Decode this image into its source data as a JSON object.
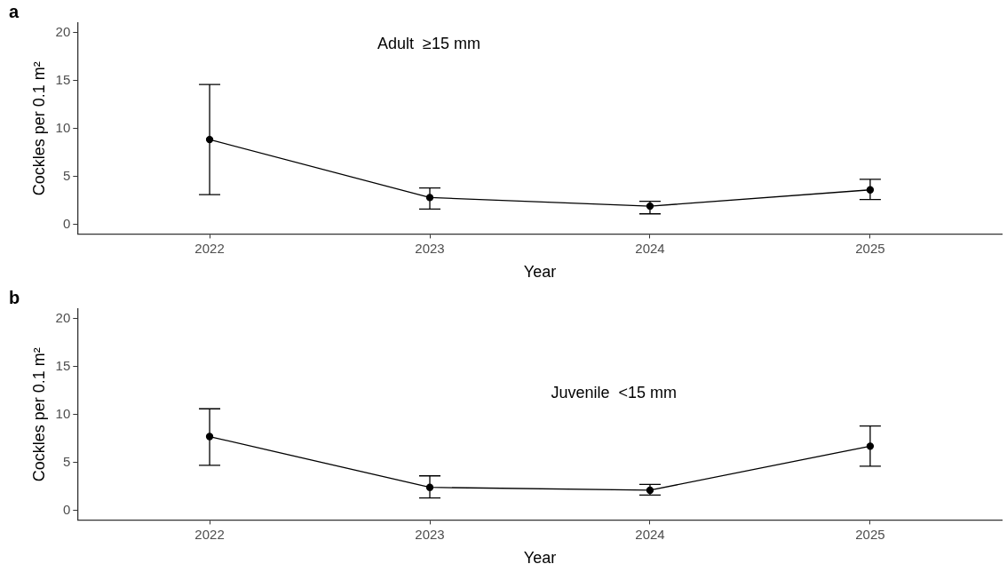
{
  "chart_data": [
    {
      "type": "line",
      "title": "a",
      "xlabel": "Year",
      "ylabel": "Cockles per 0.1 m²",
      "annotations": [
        "Adult  ≥15 mm"
      ],
      "x": [
        2022,
        2023,
        2024,
        2025
      ],
      "xlim": [
        2021.4,
        2025.6
      ],
      "xticks": [
        2022,
        2023,
        2024,
        2025
      ],
      "ylim": [
        -1,
        21
      ],
      "yticks": [
        0,
        5,
        10,
        15,
        20
      ],
      "series": [
        {
          "color": "#000000",
          "values": [
            8.85,
            2.8,
            1.9,
            3.6
          ],
          "errors": [
            [
              3.1,
              14.6
            ],
            [
              1.6,
              3.8
            ],
            [
              1.1,
              2.4
            ],
            [
              2.6,
              4.7
            ]
          ]
        }
      ],
      "marker": "circle",
      "line_style": "solid",
      "grid": false,
      "legend": false
    },
    {
      "type": "line",
      "title": "b",
      "xlabel": "Year",
      "ylabel": "Cockles per 0.1 m²",
      "annotations": [
        "Juvenile  <15 mm"
      ],
      "x": [
        2022,
        2023,
        2024,
        2025
      ],
      "xlim": [
        2021.4,
        2025.6
      ],
      "xticks": [
        2022,
        2023,
        2024,
        2025
      ],
      "ylim": [
        -1,
        21
      ],
      "yticks": [
        0,
        5,
        10,
        15,
        20
      ],
      "series": [
        {
          "color": "#000000",
          "values": [
            7.7,
            2.4,
            2.1,
            6.7
          ],
          "errors": [
            [
              4.7,
              10.6
            ],
            [
              1.3,
              3.6
            ],
            [
              1.6,
              2.7
            ],
            [
              4.6,
              8.8
            ]
          ]
        }
      ],
      "marker": "circle",
      "line_style": "solid",
      "grid": false,
      "legend": false
    }
  ]
}
